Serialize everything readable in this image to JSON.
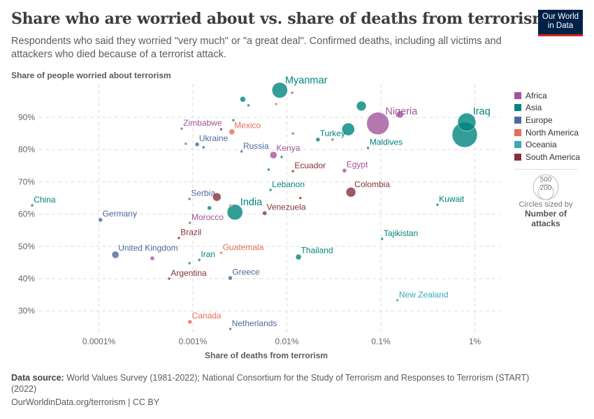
{
  "header": {
    "title": "Share who are worried about vs. share of deaths from terrorism",
    "subtitle": "Respondents who said they worried \"very much\" or \"a great deal\". Confirmed deaths, including all victims and attackers who died because of a terrorist attack.",
    "logo": "Our World in Data"
  },
  "footer": {
    "source_label": "Data source:",
    "source": "World Values Survey (1981-2022); National Consortium for the Study of Terrorism and Responses to Terrorism (START) (2022)",
    "url": "OurWorldinData.org/terrorism | CC BY"
  },
  "chart_data": {
    "type": "scatter",
    "xlabel": "Share of deaths from terrorism",
    "ylabel": "Share of people worried about terrorism",
    "x_scale": "log",
    "xlim": [
      1.2e-05,
      2.2
    ],
    "ylim": [
      23,
      100
    ],
    "x_ticks": [
      {
        "v": 0.0001,
        "label": "0.0001%"
      },
      {
        "v": 0.001,
        "label": "0.001%"
      },
      {
        "v": 0.01,
        "label": "0.01%"
      },
      {
        "v": 0.1,
        "label": "0.1%"
      },
      {
        "v": 1,
        "label": "1%"
      }
    ],
    "y_ticks": [
      {
        "v": 30,
        "label": "30%"
      },
      {
        "v": 40,
        "label": "40%"
      },
      {
        "v": 50,
        "label": "50%"
      },
      {
        "v": 60,
        "label": "60%"
      },
      {
        "v": 70,
        "label": "70%"
      },
      {
        "v": 80,
        "label": "80%"
      },
      {
        "v": 90,
        "label": "90%"
      }
    ],
    "grid": true,
    "legend_placement": "right",
    "colors": {
      "Africa": "#a2559c",
      "Asia": "#00847e",
      "Europe": "#4c6a9c",
      "North America": "#e56e5a",
      "Oceania": "#38aaba",
      "South America": "#883039"
    },
    "legend": [
      "Africa",
      "Asia",
      "Europe",
      "North America",
      "Oceania",
      "South America"
    ],
    "size_legend": {
      "values": [
        500,
        200
      ],
      "caption": "Circles sized by",
      "variable": "Number of attacks"
    },
    "points": [
      {
        "label": "China",
        "region": "Asia",
        "x": 1.95e-05,
        "y": 62.7,
        "attacks": 6
      },
      {
        "label": "Germany",
        "region": "Europe",
        "x": 0.000104,
        "y": 58.2,
        "attacks": 14
      },
      {
        "label": "United Kingdom",
        "region": "Europe",
        "x": 0.00015,
        "y": 47.4,
        "attacks": 40
      },
      {
        "label": "Zimbabwe",
        "region": "Africa",
        "x": 0.00076,
        "y": 86.5,
        "attacks": 6
      },
      {
        "label": "Ukraine",
        "region": "Europe",
        "x": 0.00111,
        "y": 81.6,
        "attacks": 14
      },
      {
        "label": "Mexico",
        "region": "North America",
        "x": 0.0026,
        "y": 85.5,
        "attacks": 25
      },
      {
        "label": "Russia",
        "region": "Europe",
        "x": 0.0033,
        "y": 79.4,
        "attacks": 6
      },
      {
        "label": "Myanmar",
        "region": "Asia",
        "x": 0.0084,
        "y": 98.4,
        "attacks": 190
      },
      {
        "label": "Kenya",
        "region": "Africa",
        "x": 0.0072,
        "y": 78.3,
        "attacks": 40
      },
      {
        "label": "Ecuador",
        "region": "South America",
        "x": 0.0116,
        "y": 73.3,
        "attacks": 6
      },
      {
        "label": "Lebanon",
        "region": "Asia",
        "x": 0.0067,
        "y": 67.5,
        "attacks": 6
      },
      {
        "label": "Turkey",
        "region": "Asia",
        "x": 0.0214,
        "y": 83.1,
        "attacks": 14
      },
      {
        "label": "",
        "region": "Asia",
        "x": 0.045,
        "y": 86.3,
        "attacks": 125
      },
      {
        "label": "Nigeria",
        "region": "Africa",
        "x": 0.093,
        "y": 88.1,
        "attacks": 395
      },
      {
        "label": "Maldives",
        "region": "Asia",
        "x": 0.073,
        "y": 80.5,
        "attacks": 6
      },
      {
        "label": "Egypt",
        "region": "Africa",
        "x": 0.041,
        "y": 73.5,
        "attacks": 14
      },
      {
        "label": "Colombia",
        "region": "South America",
        "x": 0.048,
        "y": 66.8,
        "attacks": 75
      },
      {
        "label": "India",
        "region": "Asia",
        "x": 0.0028,
        "y": 60.6,
        "attacks": 190
      },
      {
        "label": "Serbia",
        "region": "Europe",
        "x": 0.00092,
        "y": 64.7,
        "attacks": 6
      },
      {
        "label": "Venezuela",
        "region": "South America",
        "x": 0.0058,
        "y": 60.3,
        "attacks": 14
      },
      {
        "label": "Morocco",
        "region": "Africa",
        "x": 0.00093,
        "y": 57.3,
        "attacks": 6
      },
      {
        "label": "Brazil",
        "region": "South America",
        "x": 0.00071,
        "y": 52.6,
        "attacks": 6
      },
      {
        "label": "Guatemala",
        "region": "North America",
        "x": 0.002,
        "y": 48.0,
        "attacks": 6
      },
      {
        "label": "Iran",
        "region": "Asia",
        "x": 0.00117,
        "y": 45.8,
        "attacks": 6
      },
      {
        "label": "Thailand",
        "region": "Asia",
        "x": 0.0133,
        "y": 46.7,
        "attacks": 25
      },
      {
        "label": "Argentina",
        "region": "South America",
        "x": 0.00056,
        "y": 40.0,
        "attacks": 6
      },
      {
        "label": "Greece",
        "region": "Europe",
        "x": 0.0025,
        "y": 40.2,
        "attacks": 14
      },
      {
        "label": "Tajikistan",
        "region": "Asia",
        "x": 0.103,
        "y": 52.3,
        "attacks": 6
      },
      {
        "label": "Kuwait",
        "region": "Asia",
        "x": 0.4,
        "y": 62.9,
        "attacks": 6
      },
      {
        "label": "",
        "region": "Asia",
        "x": 0.78,
        "y": 84.6,
        "attacks": 500
      },
      {
        "label": "Iraq",
        "region": "Asia",
        "x": 0.82,
        "y": 88.5,
        "attacks": 260
      },
      {
        "label": "New Zealand",
        "region": "Oceania",
        "x": 0.15,
        "y": 33.3,
        "attacks": 6
      },
      {
        "label": "Canada",
        "region": "North America",
        "x": 0.00093,
        "y": 26.6,
        "attacks": 14
      },
      {
        "label": "Netherlands",
        "region": "Europe",
        "x": 0.0025,
        "y": 24.4,
        "attacks": 6
      },
      {
        "label": "",
        "region": "Asia",
        "x": 0.0034,
        "y": 95.6,
        "attacks": 25
      },
      {
        "label": "",
        "region": "Asia",
        "x": 0.0039,
        "y": 93.7,
        "attacks": 6
      },
      {
        "label": "",
        "region": "Africa",
        "x": 0.0114,
        "y": 97.6,
        "attacks": 6
      },
      {
        "label": "",
        "region": "North America",
        "x": 0.0077,
        "y": 94.1,
        "attacks": 6
      },
      {
        "label": "",
        "region": "Asia",
        "x": 0.062,
        "y": 93.5,
        "attacks": 75
      },
      {
        "label": "",
        "region": "Africa",
        "x": 0.16,
        "y": 90.9,
        "attacks": 40
      },
      {
        "label": "",
        "region": "Asia",
        "x": 0.0027,
        "y": 89.1,
        "attacks": 6
      },
      {
        "label": "",
        "region": "South America",
        "x": 0.002,
        "y": 86.3,
        "attacks": 6
      },
      {
        "label": "",
        "region": "Africa",
        "x": 0.00084,
        "y": 81.8,
        "attacks": 6
      },
      {
        "label": "",
        "region": "Asia",
        "x": 0.0013,
        "y": 80.7,
        "attacks": 6
      },
      {
        "label": "",
        "region": "Africa",
        "x": 0.0116,
        "y": 85.0,
        "attacks": 6
      },
      {
        "label": "",
        "region": "Africa",
        "x": 0.0306,
        "y": 83.1,
        "attacks": 6
      },
      {
        "label": "",
        "region": "Asia",
        "x": 0.0088,
        "y": 77.7,
        "attacks": 6
      },
      {
        "label": "",
        "region": "Asia",
        "x": 0.0064,
        "y": 73.8,
        "attacks": 6
      },
      {
        "label": "",
        "region": "South America",
        "x": 0.0139,
        "y": 65.0,
        "attacks": 6
      },
      {
        "label": "",
        "region": "South America",
        "x": 0.0018,
        "y": 65.3,
        "attacks": 55
      },
      {
        "label": "",
        "region": "Asia",
        "x": 0.0015,
        "y": 61.9,
        "attacks": 14
      },
      {
        "label": "",
        "region": "North America",
        "x": 0.0025,
        "y": 62.7,
        "attacks": 6
      },
      {
        "label": "",
        "region": "Africa",
        "x": 0.00037,
        "y": 46.3,
        "attacks": 14
      },
      {
        "label": "",
        "region": "Europe",
        "x": 0.00092,
        "y": 44.8,
        "attacks": 6
      }
    ]
  }
}
